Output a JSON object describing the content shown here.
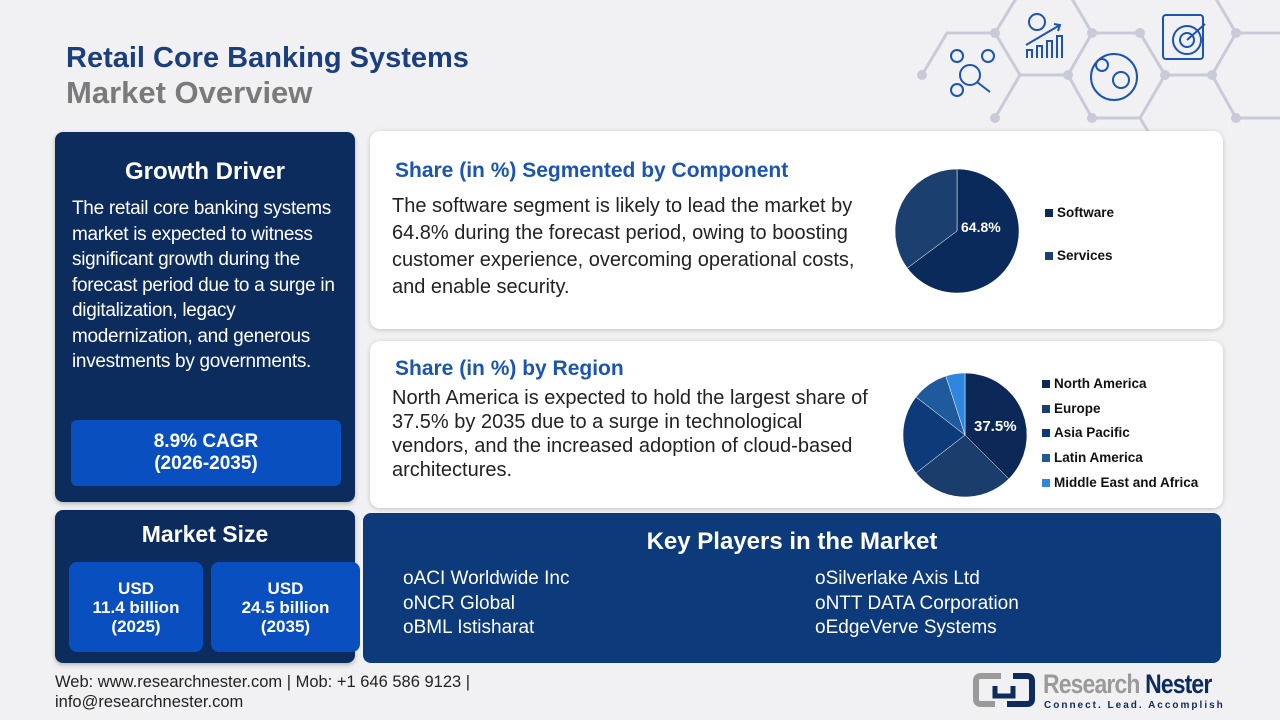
{
  "title": {
    "line1": "Retail Core Banking Systems",
    "line2": "Market Overview"
  },
  "growth": {
    "heading": "Growth Driver",
    "text": "The retail core banking systems market is expected to witness significant growth during the forecast period due to a surge in digitalization, legacy modernization, and generous investments by governments.",
    "cagr": "8.9% CAGR",
    "cagr_period": "(2026-2035)"
  },
  "market_size": {
    "heading": "Market Size",
    "boxes": [
      {
        "currency": "USD",
        "value": "11.4 billion",
        "year": "(2025)"
      },
      {
        "currency": "USD",
        "value": "24.5 billion",
        "year": "(2035)"
      }
    ]
  },
  "component": {
    "heading": "Share (in %) Segmented by Component",
    "text": "The software segment is likely to lead the market by 64.8% during the forecast period, owing to boosting customer experience, overcoming operational costs, and enable security.",
    "label": "64.8%"
  },
  "region": {
    "heading": "Share (in %) by Region",
    "text": "North America is expected to hold the largest share of 37.5% by 2035 due to a surge in technological vendors, and the increased adoption of cloud-based architectures.",
    "label": "37.5%"
  },
  "chart_data": [
    {
      "type": "pie",
      "categories": [
        "Software",
        "Services"
      ],
      "values": [
        64.8,
        35.2
      ],
      "colors": [
        "#0b2a5c",
        "#1b3f6e"
      ],
      "legend": "right"
    },
    {
      "type": "pie",
      "categories": [
        "North America",
        "Europe",
        "Asia Pacific",
        "Latin America",
        "Middle East and Africa"
      ],
      "values": [
        37.5,
        27,
        21,
        9.5,
        5
      ],
      "colors": [
        "#0b2856",
        "#1b3d6b",
        "#0d3a78",
        "#1f5a9c",
        "#2e86de"
      ],
      "legend": "right"
    }
  ],
  "players": {
    "heading": "Key Players in the Market",
    "left": [
      "ACI Worldwide Inc",
      "NCR Global",
      "BML Istisharat"
    ],
    "right": [
      "Silverlake Axis Ltd",
      "NTT DATA Corporation",
      "EdgeVerve Systems"
    ],
    "bullet": "o"
  },
  "footer": {
    "line1": "Web: www.researchnester.com | Mob: +1 646 586 9123 |",
    "line2": "info@researchnester.com"
  },
  "logo": {
    "name1": "Research",
    "name2": "Nester",
    "tagline": "Connect. Lead. Accomplish"
  },
  "icons": [
    "network-analysis-icon",
    "growth-chart-icon",
    "global-commerce-icon",
    "target-clipboard-icon"
  ]
}
